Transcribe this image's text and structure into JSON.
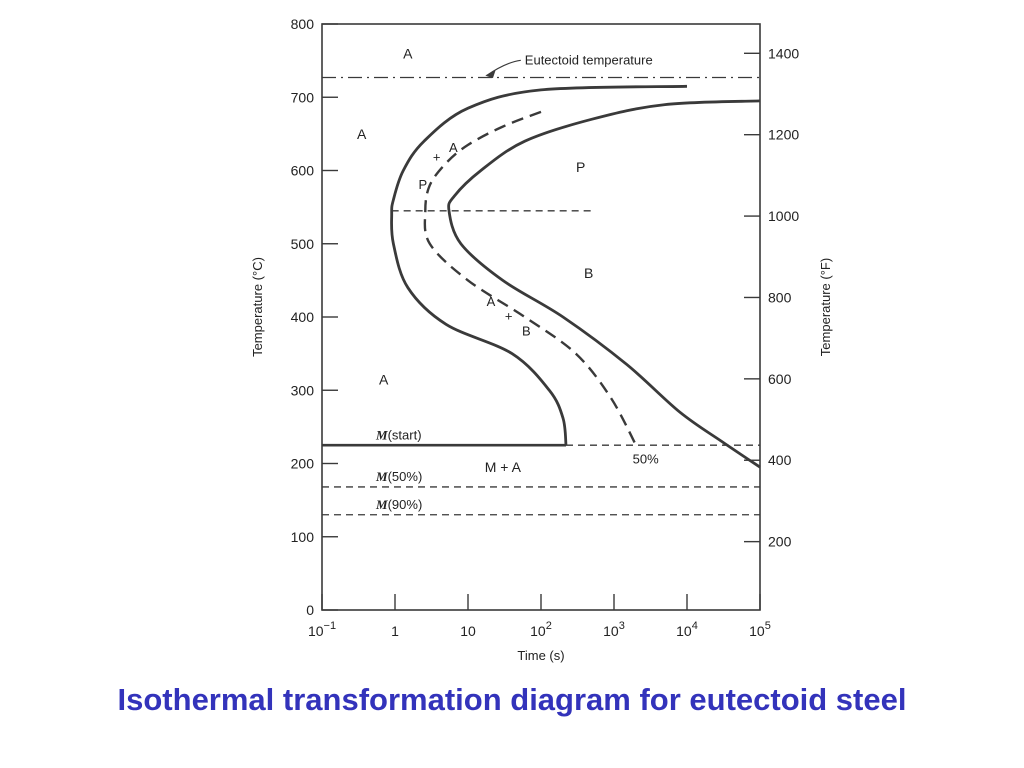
{
  "caption": {
    "text": "Isothermal transformation diagram for eutectoid steel",
    "color": "#3333bb"
  },
  "chart_data": {
    "type": "line",
    "xlabel": "Time (s)",
    "ylabel": "Temperature (°C)",
    "y2label": "Temperature (°F)",
    "x_scale": "log",
    "xlim": [
      0.1,
      100000
    ],
    "ylim": [
      0,
      800
    ],
    "y2lim": [
      32,
      1472
    ],
    "x_ticks": [
      {
        "value": 0.1,
        "base": "10",
        "exp": "−1"
      },
      {
        "value": 1,
        "base": "1",
        "exp": ""
      },
      {
        "value": 10,
        "base": "10",
        "exp": ""
      },
      {
        "value": 100,
        "base": "10",
        "exp": "2"
      },
      {
        "value": 1000,
        "base": "10",
        "exp": "3"
      },
      {
        "value": 10000,
        "base": "10",
        "exp": "4"
      },
      {
        "value": 100000,
        "base": "10",
        "exp": "5"
      }
    ],
    "y_ticks": [
      0,
      100,
      200,
      300,
      400,
      500,
      600,
      700,
      800
    ],
    "y2_ticks": [
      200,
      400,
      600,
      800,
      1000,
      1200,
      1400
    ],
    "series": [
      {
        "id": "start",
        "style": "solid",
        "points": [
          [
            10000,
            715
          ],
          [
            100,
            710
          ],
          [
            10,
            685
          ],
          [
            2.5,
            640
          ],
          [
            1.3,
            600
          ],
          [
            0.95,
            560
          ],
          [
            0.9,
            540
          ],
          [
            0.95,
            500
          ],
          [
            1.5,
            440
          ],
          [
            5,
            390
          ],
          [
            40,
            350
          ],
          [
            130,
            300
          ],
          [
            200,
            262
          ],
          [
            220,
            225
          ]
        ]
      },
      {
        "id": "finish",
        "style": "solid",
        "points": [
          [
            100000,
            695
          ],
          [
            5000,
            690
          ],
          [
            500,
            670
          ],
          [
            60,
            640
          ],
          [
            15,
            600
          ],
          [
            6.5,
            565
          ],
          [
            5.5,
            545
          ],
          [
            8,
            500
          ],
          [
            30,
            450
          ],
          [
            200,
            400
          ],
          [
            1500,
            335
          ],
          [
            8000,
            270
          ],
          [
            30000,
            230
          ],
          [
            100000,
            195
          ]
        ]
      },
      {
        "id": "fifty-percent",
        "style": "dashed",
        "points": [
          [
            100,
            680
          ],
          [
            30,
            660
          ],
          [
            10,
            635
          ],
          [
            5,
            610
          ],
          [
            3,
            580
          ],
          [
            2.6,
            545
          ],
          [
            3,
            500
          ],
          [
            10,
            450
          ],
          [
            60,
            400
          ],
          [
            300,
            350
          ],
          [
            900,
            290
          ],
          [
            2000,
            225
          ]
        ]
      }
    ],
    "reference_lines": [
      {
        "id": "eutectoid",
        "y": 727,
        "style": "dash-dot",
        "xlim": [
          0.1,
          100000
        ]
      },
      {
        "id": "m-start",
        "y": 225,
        "style": "solid",
        "xlim": [
          0.1,
          220
        ]
      },
      {
        "id": "m-start-ext",
        "y": 225,
        "style": "dashed",
        "xlim": [
          220,
          100000
        ]
      },
      {
        "id": "m-50",
        "y": 168,
        "style": "dashed",
        "xlim": [
          0.1,
          100000
        ]
      },
      {
        "id": "m-90",
        "y": 130,
        "style": "dashed",
        "xlim": [
          0.1,
          100000
        ]
      },
      {
        "id": "nose",
        "y": 545,
        "style": "dashed",
        "xlim": [
          0.9,
          500
        ]
      }
    ],
    "regions": [
      {
        "label": "A",
        "x": 1.5,
        "y": 760
      },
      {
        "label": "A",
        "x": 0.35,
        "y": 650
      },
      {
        "label": "A",
        "x": 0.7,
        "y": 315
      },
      {
        "label": "P",
        "x": 350,
        "y": 605
      },
      {
        "label": "B",
        "x": 450,
        "y": 460
      },
      {
        "label": "M + A",
        "x": 30,
        "y": 195
      }
    ],
    "annotations": [
      {
        "id": "eutectoid-label",
        "text": "Eutectoid temperature",
        "x": 60,
        "y": 745
      },
      {
        "id": "m-start-label",
        "text": "(start)",
        "prefix": "M",
        "x": 0.55,
        "y": 233
      },
      {
        "id": "m50-label",
        "text": "(50%)",
        "prefix": "M",
        "x": 0.55,
        "y": 176
      },
      {
        "id": "m90-label",
        "text": "(90%)",
        "prefix": "M",
        "x": 0.55,
        "y": 138
      },
      {
        "id": "fifty-label",
        "text": "50%",
        "x": 1800,
        "y": 200
      },
      {
        "id": "pa-P",
        "text": "P",
        "x": 2.1,
        "y": 575
      },
      {
        "id": "pa-plus",
        "text": "+",
        "x": 3.3,
        "y": 612
      },
      {
        "id": "pa-A",
        "text": "A",
        "x": 5.5,
        "y": 625
      },
      {
        "id": "ab-A",
        "text": "A",
        "x": 18,
        "y": 415
      },
      {
        "id": "ab-plus",
        "text": "+",
        "x": 32,
        "y": 395
      },
      {
        "id": "ab-B",
        "text": "B",
        "x": 55,
        "y": 375
      }
    ],
    "grid": false
  }
}
